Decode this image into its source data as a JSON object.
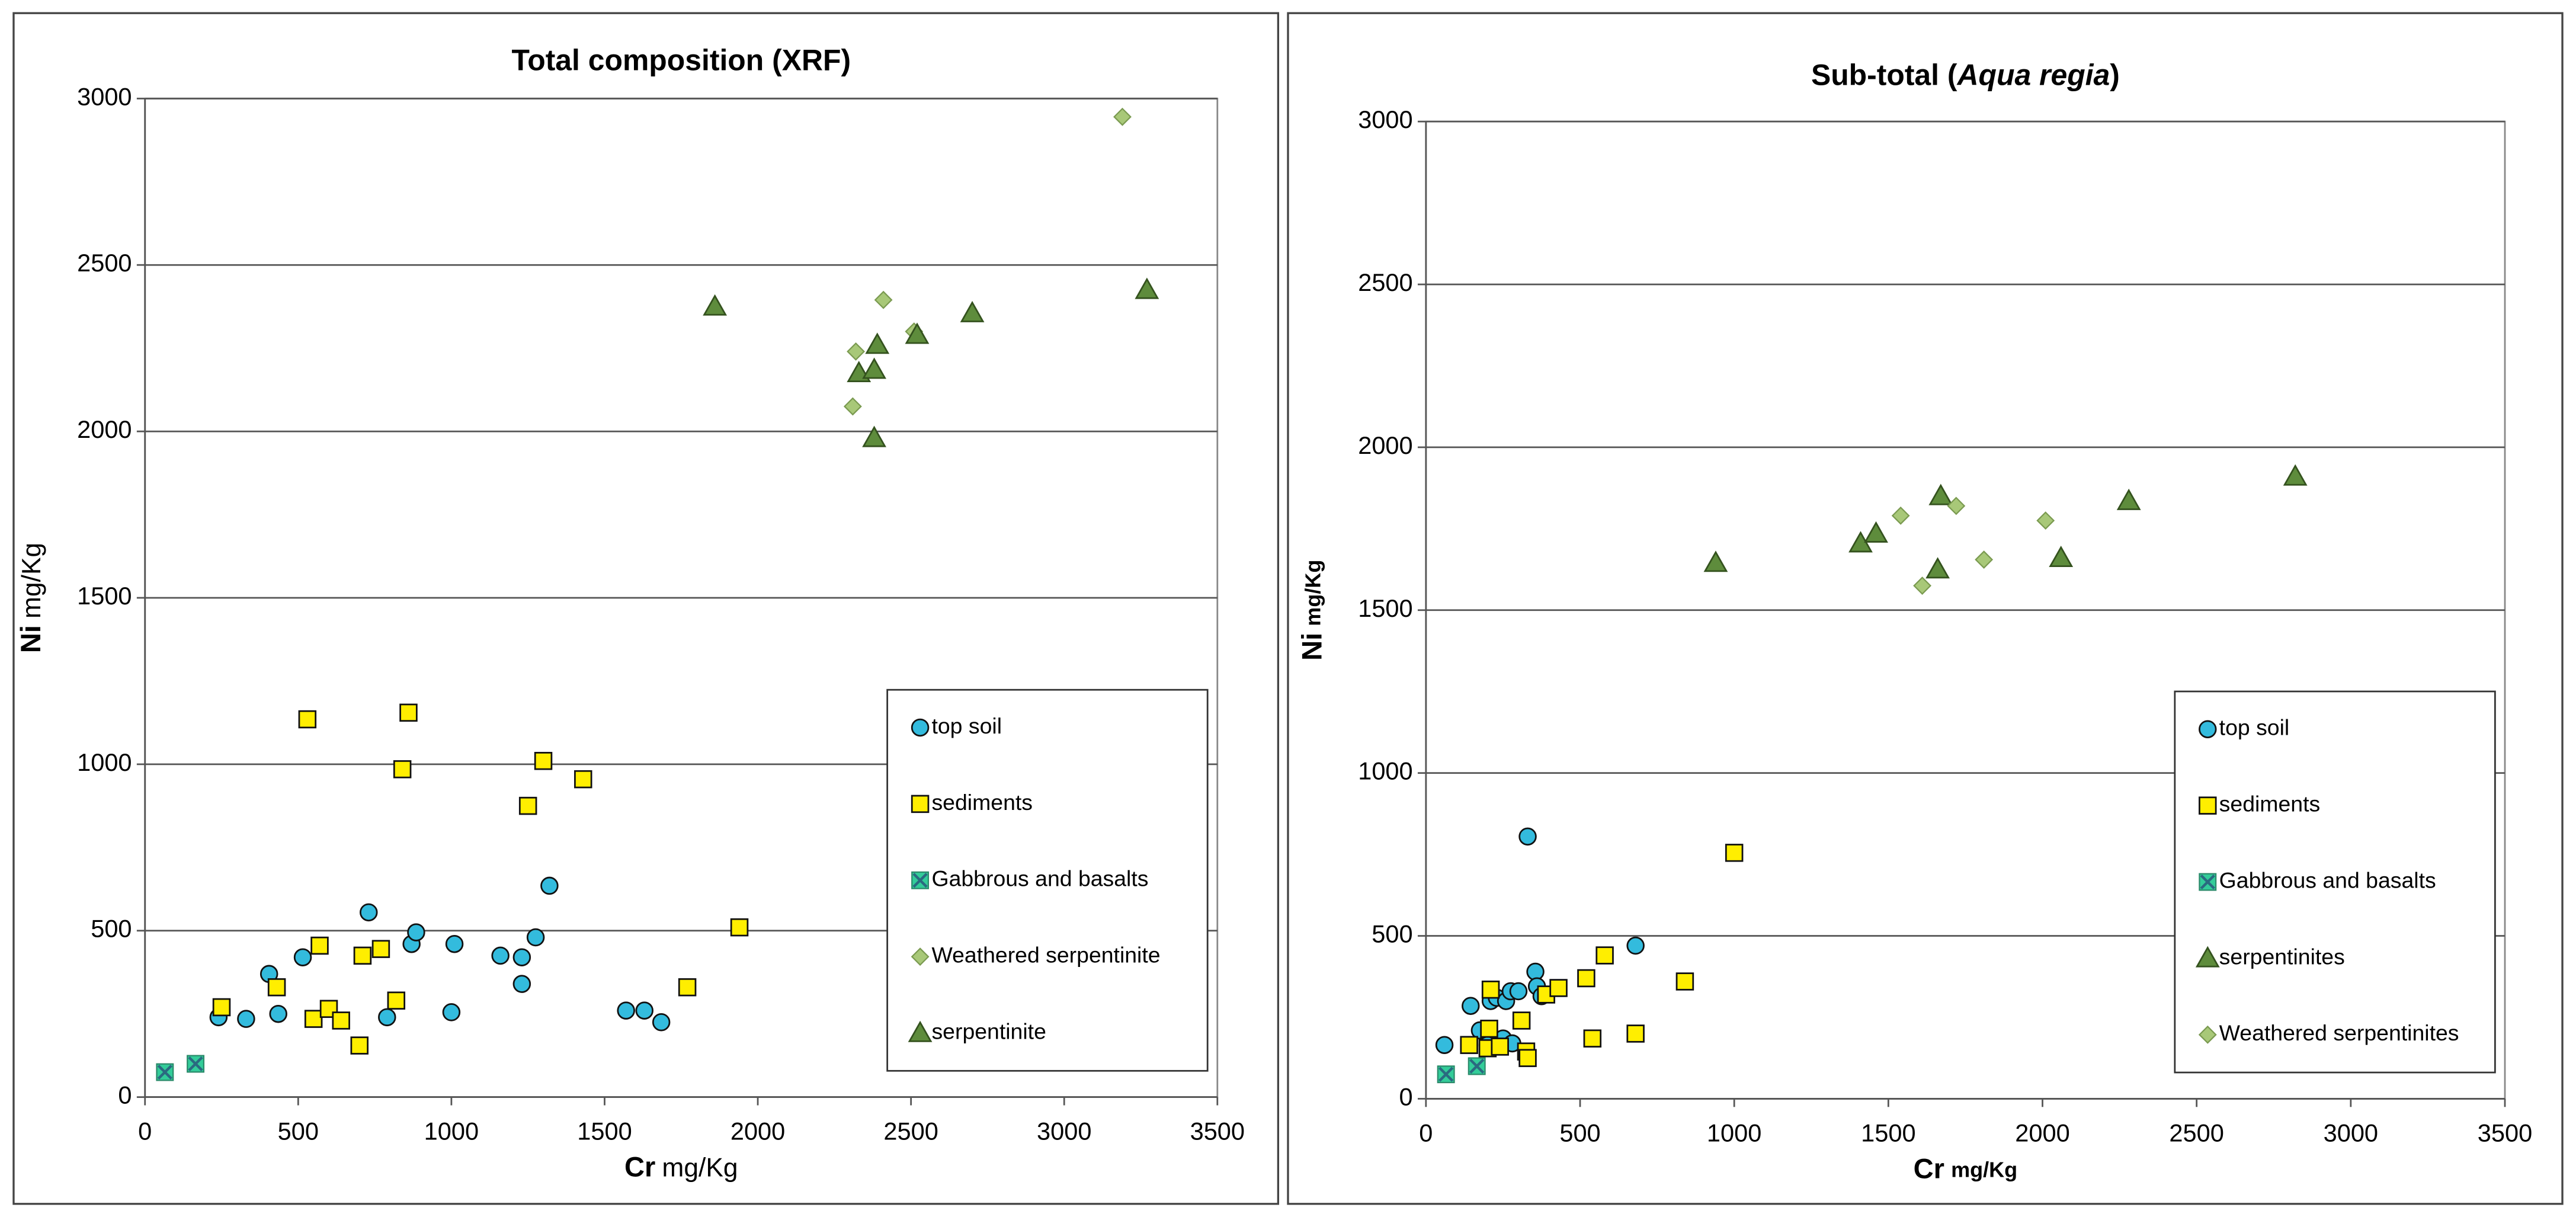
{
  "chart_data": [
    {
      "type": "scatter",
      "title": [
        "Total composition (XRF)"
      ],
      "xlabel": [
        "Cr",
        "mg/Kg"
      ],
      "ylabel": [
        "Ni",
        "mg/Kg"
      ],
      "xlim": [
        0,
        3500
      ],
      "xticks": [
        0,
        500,
        1000,
        1500,
        2000,
        2500,
        3000,
        3500
      ],
      "ylim": [
        0,
        3000
      ],
      "yticks": [
        0,
        500,
        1000,
        1500,
        2000,
        2500,
        3000
      ],
      "grid": true,
      "legend": "lower right",
      "series": [
        {
          "name": "top soil",
          "color": "#33bbdd",
          "marker": "circle",
          "x": [
            240,
            330,
            405,
            435,
            515,
            730,
            790,
            870,
            885,
            1000,
            1010,
            1160,
            1230,
            1230,
            1275,
            1320,
            1570,
            1630,
            1685
          ],
          "values": [
            240,
            235,
            370,
            250,
            420,
            555,
            240,
            460,
            495,
            255,
            460,
            425,
            340,
            420,
            480,
            635,
            260,
            260,
            225
          ]
        },
        {
          "name": "sediments",
          "color": "#ffee00",
          "marker": "square",
          "x": [
            250,
            430,
            530,
            550,
            570,
            600,
            640,
            700,
            710,
            770,
            820,
            840,
            860,
            1250,
            1300,
            1430,
            1770,
            1940
          ],
          "values": [
            270,
            330,
            1135,
            235,
            455,
            265,
            230,
            155,
            425,
            445,
            290,
            985,
            1155,
            875,
            1010,
            955,
            330,
            510
          ]
        },
        {
          "name": "Gabbrous and basalts",
          "color": "#33cc99",
          "marker": "cross",
          "x": [
            65,
            165
          ],
          "values": [
            75,
            100
          ]
        },
        {
          "name": "Weathered serpentinite",
          "color": "#a8c878",
          "marker": "diamond",
          "x": [
            2310,
            2320,
            2410,
            2510,
            3190
          ],
          "values": [
            2075,
            2240,
            2395,
            2300,
            2945
          ]
        },
        {
          "name": "serpentinite",
          "color": "#5e8c3c",
          "marker": "triangle",
          "x": [
            1860,
            2330,
            2380,
            2380,
            2390,
            2520,
            2700,
            3270
          ],
          "values": [
            2375,
            2175,
            1980,
            2185,
            2260,
            2290,
            2355,
            2425
          ]
        }
      ]
    },
    {
      "type": "scatter",
      "title": [
        "Sub-total (",
        "Aqua regia",
        ")"
      ],
      "xlabel": [
        "Cr",
        "mg/Kg"
      ],
      "ylabel": [
        "Ni",
        "mg/Kg"
      ],
      "xlim": [
        0,
        3500
      ],
      "xticks": [
        0,
        500,
        1000,
        1500,
        2000,
        2500,
        3000,
        3500
      ],
      "ylim": [
        0,
        3000
      ],
      "yticks": [
        0,
        500,
        1000,
        1500,
        2000,
        2500,
        3000
      ],
      "grid": true,
      "legend": "lower right",
      "series": [
        {
          "name": "top soil",
          "color": "#33bbdd",
          "marker": "circle",
          "x": [
            60,
            145,
            175,
            200,
            210,
            230,
            250,
            260,
            275,
            280,
            300,
            330,
            355,
            360,
            375,
            680
          ],
          "values": [
            165,
            285,
            210,
            165,
            300,
            310,
            185,
            300,
            330,
            170,
            330,
            805,
            390,
            345,
            315,
            470
          ]
        },
        {
          "name": "sediments",
          "color": "#ffee00",
          "marker": "square",
          "x": [
            140,
            200,
            205,
            210,
            240,
            310,
            325,
            330,
            390,
            430,
            520,
            540,
            580,
            680,
            840,
            1000
          ],
          "values": [
            165,
            155,
            215,
            335,
            160,
            240,
            145,
            125,
            320,
            340,
            370,
            185,
            440,
            200,
            360,
            755
          ]
        },
        {
          "name": "Gabbrous and basalts",
          "color": "#33cc99",
          "marker": "cross",
          "x": [
            65,
            165
          ],
          "values": [
            75,
            100
          ]
        },
        {
          "name": "serpentinites",
          "color": "#5e8c3c",
          "marker": "triangle",
          "x": [
            940,
            1410,
            1460,
            1660,
            1670,
            2060,
            2280,
            2820
          ],
          "values": [
            1645,
            1705,
            1735,
            1625,
            1850,
            1660,
            1835,
            1910
          ]
        },
        {
          "name": "Weathered serpentinites",
          "color": "#a8c878",
          "marker": "diamond",
          "x": [
            1540,
            1610,
            1720,
            1810,
            2010
          ],
          "values": [
            1790,
            1575,
            1820,
            1655,
            1775
          ]
        }
      ]
    }
  ]
}
